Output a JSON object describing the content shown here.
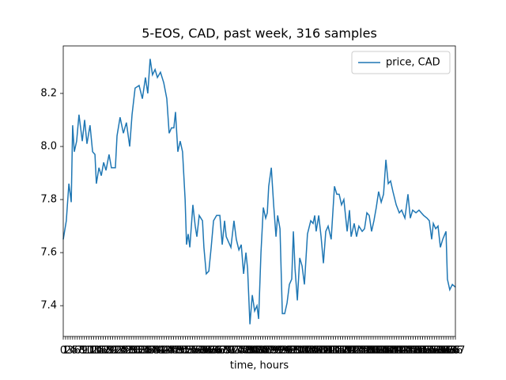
{
  "chart_data": {
    "type": "line",
    "title": "5-EOS, CAD, past week, 316 samples",
    "xlabel": "time, hours",
    "x": [
      0,
      1.3,
      2.4,
      3.4,
      4.0,
      4.7,
      5.7,
      6.7,
      8.1,
      9.1,
      10.1,
      11.4,
      12.5,
      13.5,
      14.1,
      15.2,
      16.2,
      17.2,
      18.2,
      19.5,
      20.5,
      22.2,
      22.9,
      24.2,
      25.6,
      26.9,
      28.3,
      29.3,
      30.6,
      32.3,
      33.7,
      35.0,
      36.0,
      37.0,
      38.0,
      39.1,
      40.1,
      41.4,
      42.8,
      44.1,
      45.1,
      46.1,
      47.1,
      47.8,
      48.8,
      49.8,
      50.8,
      51.9,
      52.5,
      53.2,
      53.9,
      55.2,
      56.2,
      56.9,
      57.9,
      59.3,
      59.9,
      60.9,
      62.0,
      63.0,
      64.0,
      65.3,
      66.7,
      67.7,
      68.7,
      69.4,
      70.4,
      71.4,
      72.7,
      73.7,
      74.8,
      75.8,
      76.8,
      77.8,
      78.5,
      79.5,
      80.5,
      81.5,
      82.5,
      83.2,
      84.2,
      85.2,
      86.2,
      86.9,
      87.5,
      88.6,
      89.6,
      90.6,
      91.3,
      92.3,
      93.3,
      94.3,
      95.3,
      96.3,
      97.3,
      98.0,
      98.7,
      99.7,
      100.7,
      101.7,
      102.7,
      104.0,
      105.4,
      106.4,
      107.1,
      107.7,
      108.8,
      109.8,
      110.8,
      111.8,
      112.8,
      114.1,
      115.5,
      116.5,
      117.5,
      118.5,
      119.5,
      120.9,
      121.9,
      122.6,
      123.9,
      124.9,
      125.9,
      127.3,
      128.3,
      129.3,
      130.3,
      131.3,
      132.3,
      133.3,
      134.3,
      135.4,
      136.4,
      137.4,
      138.4,
      139.4,
      140.4,
      141.8,
      143.1,
      144.1,
      145.5,
      146.8,
      147.8,
      148.8,
      150.2,
      151.5,
      152.5,
      153.5,
      154.9,
      155.9,
      156.9,
      157.6,
      158.6,
      159.6,
      160.6,
      161.6,
      163.0,
      163.6,
      164.6,
      165.7,
      167
    ],
    "series": [
      {
        "name": "price, CAD",
        "color": "#1f77b4",
        "values": [
          7.65,
          7.72,
          7.86,
          7.79,
          8.08,
          7.98,
          8.02,
          8.12,
          8.02,
          8.1,
          8.01,
          8.08,
          7.98,
          7.97,
          7.86,
          7.92,
          7.89,
          7.94,
          7.91,
          7.97,
          7.92,
          7.92,
          8.04,
          8.11,
          8.05,
          8.09,
          8.0,
          8.12,
          8.22,
          8.23,
          8.18,
          8.26,
          8.2,
          8.33,
          8.27,
          8.29,
          8.26,
          8.28,
          8.24,
          8.18,
          8.05,
          8.07,
          8.07,
          8.13,
          7.98,
          8.02,
          7.98,
          7.8,
          7.63,
          7.67,
          7.62,
          7.78,
          7.7,
          7.66,
          7.74,
          7.72,
          7.62,
          7.52,
          7.53,
          7.62,
          7.72,
          7.74,
          7.74,
          7.63,
          7.72,
          7.66,
          7.64,
          7.62,
          7.72,
          7.65,
          7.61,
          7.63,
          7.52,
          7.6,
          7.54,
          7.33,
          7.44,
          7.38,
          7.4,
          7.35,
          7.6,
          7.77,
          7.73,
          7.75,
          7.85,
          7.92,
          7.78,
          7.66,
          7.74,
          7.69,
          7.37,
          7.37,
          7.41,
          7.48,
          7.5,
          7.68,
          7.54,
          7.42,
          7.58,
          7.55,
          7.48,
          7.67,
          7.72,
          7.71,
          7.74,
          7.68,
          7.74,
          7.66,
          7.56,
          7.68,
          7.7,
          7.65,
          7.85,
          7.82,
          7.82,
          7.78,
          7.8,
          7.68,
          7.76,
          7.66,
          7.71,
          7.66,
          7.7,
          7.68,
          7.69,
          7.75,
          7.74,
          7.68,
          7.72,
          7.77,
          7.83,
          7.79,
          7.82,
          7.95,
          7.86,
          7.87,
          7.83,
          7.78,
          7.75,
          7.76,
          7.73,
          7.82,
          7.73,
          7.76,
          7.75,
          7.76,
          7.75,
          7.74,
          7.73,
          7.72,
          7.65,
          7.71,
          7.69,
          7.7,
          7.62,
          7.65,
          7.68,
          7.5,
          7.46,
          7.48,
          7.47
        ]
      }
    ],
    "xlim": [
      0,
      167
    ],
    "xticks": [
      0,
      1,
      2,
      3,
      4,
      5,
      6,
      7,
      8,
      9,
      10,
      11,
      12,
      13,
      14,
      15,
      16,
      17,
      18,
      19,
      20,
      21,
      22,
      23,
      24,
      25,
      26,
      27,
      28,
      29,
      30,
      31,
      32,
      33,
      34,
      35,
      36,
      37,
      38,
      39,
      40,
      41,
      42,
      43,
      44,
      45,
      46,
      47,
      48,
      49,
      50,
      51,
      52,
      53,
      54,
      55,
      56,
      57,
      58,
      59,
      60,
      61,
      62,
      63,
      64,
      65,
      66,
      67,
      68,
      69,
      70,
      71,
      72,
      73,
      74,
      75,
      76,
      77,
      78,
      79,
      80,
      81,
      82,
      83,
      84,
      85,
      86,
      87,
      88,
      89,
      90,
      91,
      92,
      93,
      94,
      95,
      96,
      97,
      98,
      99,
      100,
      101,
      102,
      103,
      104,
      105,
      106,
      107,
      108,
      109,
      110,
      111,
      112,
      113,
      114,
      115,
      116,
      117,
      118,
      119,
      120,
      121,
      122,
      123,
      124,
      125,
      126,
      127,
      128,
      129,
      130,
      131,
      132,
      133,
      134,
      135,
      136,
      137,
      138,
      139,
      140,
      141,
      142,
      143,
      144,
      145,
      146,
      147,
      148,
      149,
      150,
      151,
      152,
      153,
      154,
      155,
      156,
      157,
      158,
      159,
      160,
      161,
      162,
      163,
      164,
      165,
      166,
      167
    ],
    "ylim": [
      7.284,
      8.379
    ],
    "yticks": [
      {
        "value": 7.4,
        "label": "7.4"
      },
      {
        "value": 7.6,
        "label": "7.6"
      },
      {
        "value": 7.8,
        "label": "7.8"
      },
      {
        "value": 8.0,
        "label": "8.0"
      },
      {
        "value": 8.2,
        "label": "8.2"
      }
    ],
    "legend": "upper right"
  }
}
